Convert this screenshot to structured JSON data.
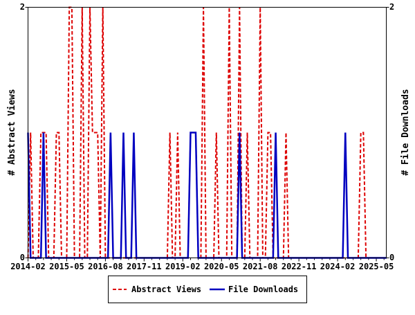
{
  "chart_data": {
    "type": "line",
    "title": "",
    "ylabel_left": "# Abstract Views",
    "ylabel_right": "# File Downloads",
    "ylim_left": [
      0,
      2
    ],
    "ylim_right": [
      0,
      2
    ],
    "yticks_left": [
      "0",
      "2"
    ],
    "yticks_right": [
      "0",
      "2"
    ],
    "xtick_labels": [
      "2014-02",
      "2015-05",
      "2016-08",
      "2017-11",
      "2019-02",
      "2020-05",
      "2021-08",
      "2022-11",
      "2024-02",
      "2025-05"
    ],
    "grid": false,
    "legend_position": "bottom",
    "x": [
      "2014-02",
      "2014-03",
      "2014-04",
      "2014-05",
      "2014-06",
      "2014-07",
      "2014-08",
      "2014-09",
      "2014-10",
      "2014-11",
      "2014-12",
      "2015-01",
      "2015-02",
      "2015-03",
      "2015-04",
      "2015-05",
      "2015-06",
      "2015-07",
      "2015-08",
      "2015-09",
      "2015-10",
      "2015-11",
      "2015-12",
      "2016-01",
      "2016-02",
      "2016-03",
      "2016-04",
      "2016-05",
      "2016-06",
      "2016-07",
      "2016-08",
      "2016-09",
      "2016-10",
      "2016-11",
      "2016-12",
      "2017-01",
      "2017-02",
      "2017-03",
      "2017-04",
      "2017-05",
      "2017-06",
      "2017-07",
      "2017-08",
      "2017-09",
      "2017-10",
      "2017-11",
      "2017-12",
      "2018-01",
      "2018-02",
      "2018-03",
      "2018-04",
      "2018-05",
      "2018-06",
      "2018-07",
      "2018-08",
      "2018-09",
      "2018-10",
      "2018-11",
      "2018-12",
      "2019-01",
      "2019-02",
      "2019-03",
      "2019-04",
      "2019-05",
      "2019-06",
      "2019-07",
      "2019-08",
      "2019-09",
      "2019-10",
      "2019-11",
      "2019-12",
      "2020-01",
      "2020-02",
      "2020-03",
      "2020-04",
      "2020-05",
      "2020-06",
      "2020-07",
      "2020-08",
      "2020-09",
      "2020-10",
      "2020-11",
      "2020-12",
      "2021-01",
      "2021-02",
      "2021-03",
      "2021-04",
      "2021-05",
      "2021-06",
      "2021-07",
      "2021-08",
      "2021-09",
      "2021-10",
      "2021-11",
      "2021-12",
      "2022-01",
      "2022-02",
      "2022-03",
      "2022-04",
      "2022-05",
      "2022-06",
      "2022-07",
      "2022-08",
      "2022-09",
      "2022-10",
      "2022-11",
      "2022-12",
      "2023-01",
      "2023-02",
      "2023-03",
      "2023-04",
      "2023-05",
      "2023-06",
      "2023-07",
      "2023-08",
      "2023-09",
      "2023-10",
      "2023-11",
      "2023-12",
      "2024-01",
      "2024-02",
      "2024-03",
      "2024-04",
      "2024-05",
      "2024-06",
      "2024-07",
      "2024-08",
      "2024-09",
      "2024-10",
      "2024-11",
      "2024-12",
      "2025-01",
      "2025-02",
      "2025-03",
      "2025-04",
      "2025-05",
      "2025-06",
      "2025-07",
      "2025-08",
      "2025-09"
    ],
    "series": [
      {
        "name": "Abstract Views",
        "axis": "left",
        "color": "#dd0000",
        "style": "dashed",
        "values": [
          0,
          1,
          0,
          0,
          0,
          1,
          1,
          1,
          0,
          0,
          0,
          1,
          1,
          0,
          0,
          0,
          2,
          2,
          0,
          0,
          0,
          2,
          0,
          0,
          2,
          1,
          1,
          1,
          0,
          2,
          0,
          0,
          0,
          0,
          0,
          0,
          0,
          0,
          0,
          0,
          0,
          0,
          0,
          0,
          0,
          0,
          0,
          0,
          0,
          0,
          0,
          0,
          0,
          0,
          0,
          1,
          0,
          0,
          1,
          0,
          0,
          0,
          0,
          1,
          1,
          1,
          0,
          0,
          2,
          0,
          0,
          0,
          0,
          1,
          0,
          0,
          0,
          0,
          2,
          0,
          0,
          0,
          2,
          0,
          0,
          1,
          0,
          0,
          0,
          0,
          2,
          0,
          0,
          1,
          1,
          0,
          0,
          0,
          0,
          0,
          1,
          0,
          0,
          0,
          0,
          0,
          0,
          0,
          0,
          0,
          0,
          0,
          0,
          0,
          0,
          0,
          0,
          0,
          0,
          0,
          0,
          0,
          0,
          0,
          0,
          0,
          0,
          0,
          0,
          1,
          1,
          0,
          0,
          0,
          0,
          0,
          0,
          0,
          0,
          0
        ]
      },
      {
        "name": "File Downloads",
        "axis": "right",
        "color": "#0000c0",
        "style": "solid",
        "values": [
          1,
          0,
          0,
          0,
          0,
          0,
          1,
          0,
          0,
          0,
          0,
          0,
          0,
          0,
          0,
          0,
          0,
          0,
          0,
          0,
          0,
          0,
          0,
          0,
          0,
          0,
          0,
          0,
          0,
          0,
          0,
          0,
          1,
          0,
          0,
          0,
          0,
          1,
          0,
          0,
          0,
          1,
          0,
          0,
          0,
          0,
          0,
          0,
          0,
          0,
          0,
          0,
          0,
          0,
          0,
          0,
          0,
          0,
          0,
          0,
          0,
          0,
          0,
          1,
          1,
          1,
          0,
          0,
          0,
          0,
          0,
          0,
          0,
          0,
          0,
          0,
          0,
          0,
          0,
          0,
          0,
          0,
          1,
          0,
          0,
          0,
          0,
          0,
          0,
          0,
          0,
          0,
          0,
          0,
          0,
          0,
          1,
          0,
          0,
          0,
          0,
          0,
          0,
          0,
          0,
          0,
          0,
          0,
          0,
          0,
          0,
          0,
          0,
          0,
          0,
          0,
          0,
          0,
          0,
          0,
          0,
          0,
          0,
          1,
          0,
          0,
          0,
          0,
          0,
          0,
          0,
          0,
          0,
          0,
          0,
          0,
          0,
          0,
          0,
          0
        ]
      }
    ]
  }
}
